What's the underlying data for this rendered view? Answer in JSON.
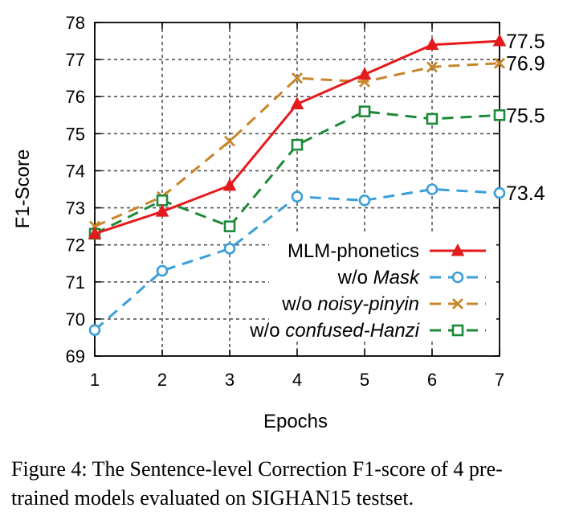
{
  "chart_data": {
    "type": "line",
    "xlabel": "Epochs",
    "ylabel": "F1-Score",
    "xlim": [
      1,
      7
    ],
    "ylim": [
      69,
      78
    ],
    "x": [
      1,
      2,
      3,
      4,
      5,
      6,
      7
    ],
    "x_ticks": [
      "1",
      "2",
      "3",
      "4",
      "5",
      "6",
      "7"
    ],
    "y_ticks": [
      "69",
      "70",
      "71",
      "72",
      "73",
      "74",
      "75",
      "76",
      "77",
      "78"
    ],
    "grid": true,
    "legend_position": "bottom-right",
    "series": [
      {
        "name_parts": [
          {
            "text": "MLM-phonetics",
            "italic": false
          }
        ],
        "values": [
          72.3,
          72.9,
          73.6,
          75.8,
          76.6,
          77.4,
          77.5
        ],
        "color": "#e41a1c",
        "dash": "solid",
        "marker": "filled-triangle",
        "end_label": "77.5"
      },
      {
        "name_parts": [
          {
            "text": "w/o ",
            "italic": false
          },
          {
            "text": "Mask",
            "italic": true
          }
        ],
        "values": [
          69.7,
          71.3,
          71.9,
          73.3,
          73.2,
          73.5,
          73.4
        ],
        "color": "#3a9fd8",
        "dash": "dashed",
        "marker": "open-circle",
        "end_label": "73.4"
      },
      {
        "name_parts": [
          {
            "text": "w/o ",
            "italic": false
          },
          {
            "text": "noisy-pinyin",
            "italic": true
          }
        ],
        "values": [
          72.5,
          73.3,
          74.8,
          76.5,
          76.4,
          76.8,
          76.9
        ],
        "color": "#c8862a",
        "dash": "dashed",
        "marker": "x",
        "end_label": "76.9"
      },
      {
        "name_parts": [
          {
            "text": "w/o ",
            "italic": false
          },
          {
            "text": "confused-Hanzi",
            "italic": true
          }
        ],
        "values": [
          72.3,
          73.2,
          72.5,
          74.7,
          75.6,
          75.4,
          75.5
        ],
        "color": "#1d8a3a",
        "dash": "dashed",
        "marker": "open-square",
        "end_label": "75.5"
      }
    ]
  },
  "caption": "Figure 4: The Sentence-level Correction F1-score of 4 pre-trained models evaluated on SIGHAN15 testset."
}
